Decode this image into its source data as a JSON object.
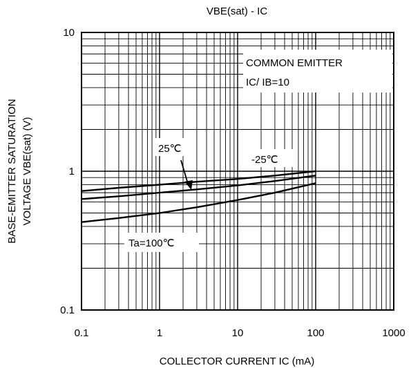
{
  "chart_data": {
    "type": "line",
    "title": "VBE(sat) - IC",
    "xlabel": "COLLECTOR CURRENT IC (mA)",
    "ylabel_lines": [
      "BASE-EMITTER SATURATION",
      "VOLTAGE  VBE(sat)  (V)"
    ],
    "xscale": "log",
    "yscale": "log",
    "xlim": [
      0.1,
      1000
    ],
    "ylim": [
      0.1,
      10
    ],
    "x_ticks": [
      0.1,
      1,
      10,
      100,
      1000
    ],
    "x_tick_labels": [
      "0.1",
      "1",
      "10",
      "100",
      "1000"
    ],
    "y_ticks": [
      0.1,
      1,
      10
    ],
    "y_tick_labels": [
      "0.1",
      "1",
      "10"
    ],
    "grid": true,
    "annotations": {
      "condition_line1": "COMMON EMITTER",
      "condition_line2": "IC/ IB=10",
      "label_25": "25℃",
      "label_m25": "-25℃",
      "label_100": "Ta=100℃"
    },
    "series": [
      {
        "name": "-25℃",
        "x": [
          0.1,
          0.3,
          1,
          3,
          10,
          30,
          100
        ],
        "y": [
          0.72,
          0.76,
          0.8,
          0.84,
          0.88,
          0.93,
          1.0
        ]
      },
      {
        "name": "25℃",
        "x": [
          0.1,
          0.3,
          1,
          3,
          10,
          30,
          100
        ],
        "y": [
          0.63,
          0.66,
          0.7,
          0.74,
          0.79,
          0.85,
          0.93
        ]
      },
      {
        "name": "Ta=100℃",
        "x": [
          0.1,
          0.3,
          1,
          3,
          10,
          30,
          100
        ],
        "y": [
          0.43,
          0.46,
          0.5,
          0.55,
          0.62,
          0.7,
          0.82
        ]
      }
    ]
  }
}
